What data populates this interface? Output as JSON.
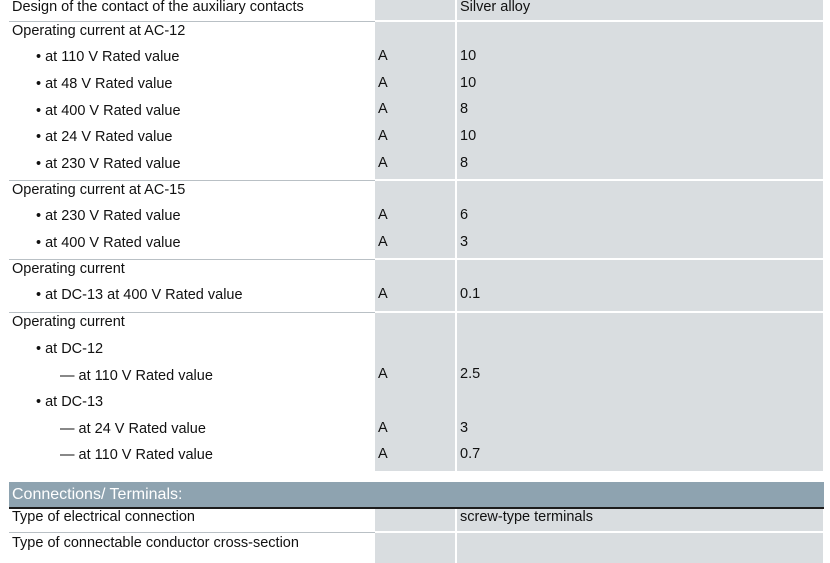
{
  "rows": [
    {
      "label": "Design of the contact of the auxiliary contacts",
      "unit": "",
      "value": "Silver alloy"
    },
    {
      "label": "Operating current at AC-12",
      "unit": "",
      "value": ""
    },
    {
      "label": "at 110 V Rated value",
      "unit": "A",
      "value": "10"
    },
    {
      "label": "at 48 V Rated value",
      "unit": "A",
      "value": "10"
    },
    {
      "label": "at 400 V Rated value",
      "unit": "A",
      "value": "8"
    },
    {
      "label": "at 24 V Rated value",
      "unit": "A",
      "value": "10"
    },
    {
      "label": "at 230 V Rated value",
      "unit": "A",
      "value": "8"
    },
    {
      "label": "Operating current at AC-15",
      "unit": "",
      "value": ""
    },
    {
      "label": "at 230 V Rated value",
      "unit": "A",
      "value": "6"
    },
    {
      "label": "at 400 V Rated value",
      "unit": "A",
      "value": "3"
    },
    {
      "label": "Operating current",
      "unit": "",
      "value": ""
    },
    {
      "label": "at DC-13 at 400 V Rated value",
      "unit": "A",
      "value": "0.1"
    },
    {
      "label": "Operating current",
      "unit": "",
      "value": ""
    },
    {
      "label": "at DC-12",
      "unit": "",
      "value": ""
    },
    {
      "label": "— at 110 V Rated value",
      "unit": "A",
      "value": "2.5"
    },
    {
      "label": "at DC-13",
      "unit": "",
      "value": ""
    },
    {
      "label": "— at 24 V Rated value",
      "unit": "A",
      "value": "3"
    },
    {
      "label": "— at 110 V Rated value",
      "unit": "A",
      "value": "0.7"
    }
  ],
  "section": {
    "title": "Connections/ Terminals:"
  },
  "connections": [
    {
      "label": "Type of electrical connection",
      "value": "screw-type terminals"
    },
    {
      "label": "Type of connectable conductor cross-section",
      "value": ""
    }
  ],
  "colors": {
    "cell_bg": "#d9dde0",
    "section_bg": "#8ea3b0"
  }
}
